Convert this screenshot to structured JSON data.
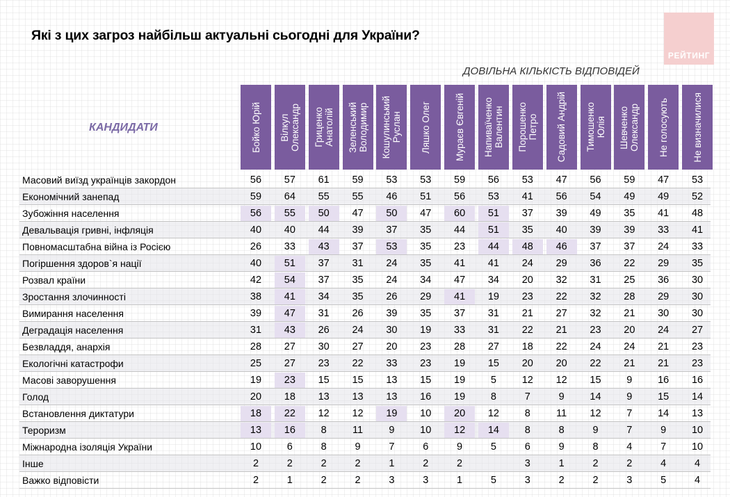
{
  "title": "Які з цих загроз найбільш актуальні сьогодні для України?",
  "subtitle": "ДОВІЛЬНА КІЛЬКІСТЬ ВІДПОВІДЕЙ",
  "candidates_label": "КАНДИДАТИ",
  "logo": "РЕЙТИНГ",
  "colors": {
    "header_bg": "#7a5c9e",
    "highlight": "#e6dff0",
    "accent_text": "#7b6aa6",
    "logo_bg": "#f5cfcf"
  },
  "chart_data": {
    "type": "table",
    "title": "Які з цих загроз найбільш актуальні сьогодні для України?",
    "columns": [
      "Бойко Юрій",
      "Вілкул\nОлександр",
      "Гриценко\nАнатолій",
      "Зеленський\nВолодимир",
      "Кошулинський\nРуслан",
      "Ляшко Олег",
      "Мураєв Євгеній",
      "Напиваїченко\nВалентин",
      "Порошенко\nПетро",
      "Садовий Андрій",
      "Тимошенко\nЮлія",
      "Шевченко\nОлександр",
      "Не голосують",
      "Не визначилися"
    ],
    "rows": [
      {
        "label": "Масовий виїзд українців закордон",
        "values": [
          "56",
          "57",
          "61",
          "59",
          "53",
          "53",
          "59",
          "56",
          "53",
          "47",
          "56",
          "59",
          "47",
          "53"
        ],
        "highlight": []
      },
      {
        "label": "Економічний занепад",
        "values": [
          "59",
          "64",
          "55",
          "55",
          "46",
          "51",
          "56",
          "53",
          "41",
          "56",
          "54",
          "49",
          "49",
          "52"
        ],
        "highlight": []
      },
      {
        "label": "Зубожіння населення",
        "values": [
          "56",
          "55",
          "50",
          "47",
          "50",
          "47",
          "60",
          "51",
          "37",
          "39",
          "49",
          "35",
          "41",
          "48"
        ],
        "highlight": [
          0,
          1,
          2,
          4,
          6,
          7
        ]
      },
      {
        "label": "Девальвація гривні, інфляція",
        "values": [
          "40",
          "40",
          "44",
          "39",
          "37",
          "35",
          "44",
          "51",
          "35",
          "40",
          "39",
          "39",
          "33",
          "41"
        ],
        "highlight": [
          7
        ]
      },
      {
        "label": "Повномасштабна війна із Росією",
        "values": [
          "26",
          "33",
          "43",
          "37",
          "53",
          "35",
          "23",
          "44",
          "48",
          "46",
          "37",
          "37",
          "24",
          "33"
        ],
        "highlight": [
          2,
          4,
          7,
          8,
          9
        ]
      },
      {
        "label": "Погіршення здоров`я нації",
        "values": [
          "40",
          "51",
          "37",
          "31",
          "24",
          "35",
          "41",
          "41",
          "24",
          "29",
          "36",
          "22",
          "29",
          "35"
        ],
        "highlight": [
          1
        ]
      },
      {
        "label": "Розвал країни",
        "values": [
          "42",
          "54",
          "37",
          "35",
          "24",
          "34",
          "47",
          "34",
          "20",
          "32",
          "31",
          "25",
          "36",
          "30"
        ],
        "highlight": [
          1
        ]
      },
      {
        "label": "Зростання злочинності",
        "values": [
          "38",
          "41",
          "34",
          "35",
          "26",
          "29",
          "41",
          "19",
          "23",
          "22",
          "32",
          "28",
          "29",
          "30"
        ],
        "highlight": [
          1,
          6
        ]
      },
      {
        "label": "Вимирання населення",
        "values": [
          "39",
          "47",
          "31",
          "26",
          "39",
          "35",
          "37",
          "31",
          "21",
          "27",
          "32",
          "21",
          "30",
          "30"
        ],
        "highlight": [
          1
        ]
      },
      {
        "label": "Деградація населення",
        "values": [
          "31",
          "43",
          "26",
          "24",
          "30",
          "19",
          "33",
          "31",
          "22",
          "21",
          "23",
          "20",
          "24",
          "27"
        ],
        "highlight": [
          1
        ]
      },
      {
        "label": "Безвладдя, анархія",
        "values": [
          "28",
          "27",
          "30",
          "27",
          "20",
          "23",
          "28",
          "27",
          "18",
          "22",
          "24",
          "24",
          "21",
          "23"
        ],
        "highlight": []
      },
      {
        "label": "Екологічні катастрофи",
        "values": [
          "25",
          "27",
          "23",
          "22",
          "33",
          "23",
          "19",
          "15",
          "20",
          "20",
          "22",
          "21",
          "21",
          "23"
        ],
        "highlight": []
      },
      {
        "label": "Масові заворушення",
        "values": [
          "19",
          "23",
          "15",
          "15",
          "13",
          "15",
          "19",
          "5",
          "12",
          "12",
          "15",
          "9",
          "16",
          "16"
        ],
        "highlight": [
          1
        ]
      },
      {
        "label": "Голод",
        "values": [
          "20",
          "18",
          "13",
          "13",
          "13",
          "16",
          "19",
          "8",
          "7",
          "9",
          "14",
          "9",
          "15",
          "14"
        ],
        "highlight": []
      },
      {
        "label": "Встановлення диктатури",
        "values": [
          "18",
          "22",
          "12",
          "12",
          "19",
          "10",
          "20",
          "12",
          "8",
          "11",
          "12",
          "7",
          "14",
          "13"
        ],
        "highlight": [
          0,
          1,
          4,
          6
        ]
      },
      {
        "label": "Тероризм",
        "values": [
          "13",
          "16",
          "8",
          "11",
          "9",
          "10",
          "12",
          "14",
          "8",
          "8",
          "9",
          "7",
          "9",
          "10"
        ],
        "highlight": [
          0,
          1,
          6,
          7
        ]
      },
      {
        "label": "Міжнародна ізоляція України",
        "values": [
          "10",
          "6",
          "8",
          "9",
          "7",
          "6",
          "9",
          "5",
          "6",
          "9",
          "8",
          "4",
          "7",
          "10"
        ],
        "highlight": []
      },
      {
        "label": "Інше",
        "values": [
          "2",
          "2",
          "2",
          "2",
          "1",
          "2",
          "2",
          "",
          "3",
          "1",
          "2",
          "2",
          "4",
          "4"
        ],
        "highlight": []
      },
      {
        "label": "Важко відповісти",
        "values": [
          "2",
          "1",
          "2",
          "2",
          "3",
          "3",
          "1",
          "5",
          "3",
          "2",
          "2",
          "3",
          "5",
          "4"
        ],
        "highlight": []
      }
    ]
  }
}
